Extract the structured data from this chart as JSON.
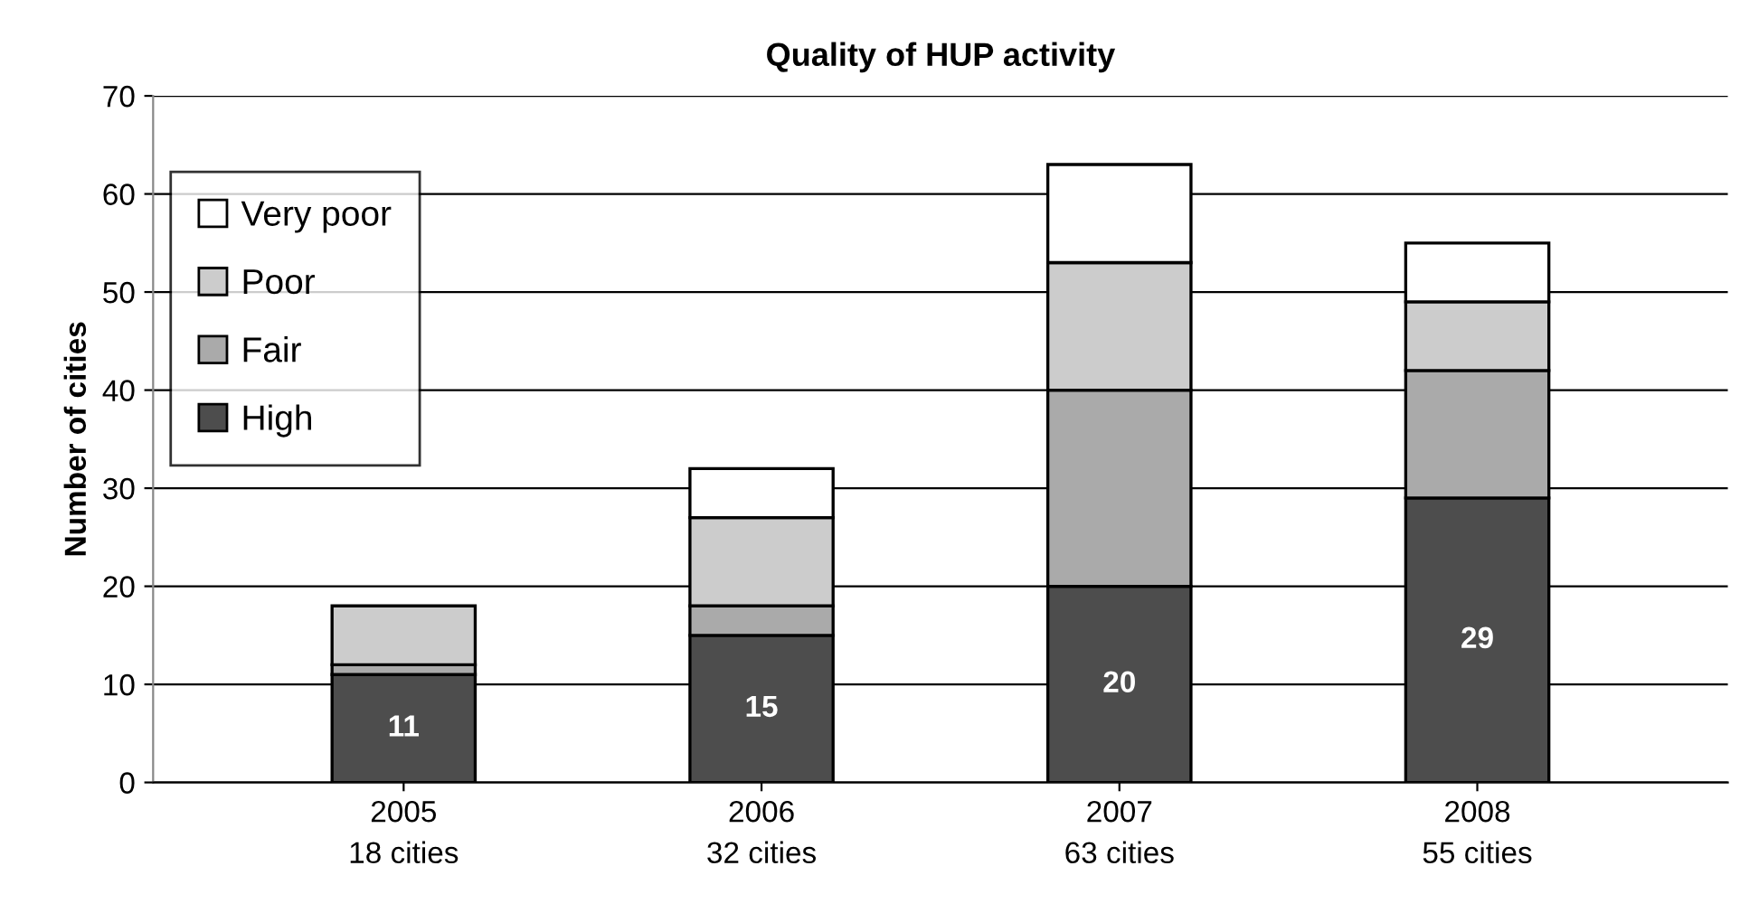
{
  "chart_data": {
    "type": "bar",
    "title": "Quality of HUP activity",
    "ylabel": "Number of cities",
    "categories": [
      "2005\n18 cities",
      "2006\n32 cities",
      "2007\n63 cities",
      "2008\n55 cities"
    ],
    "stacked": true,
    "series": [
      {
        "name": "High",
        "color": "#4d4d4d",
        "values": [
          11,
          15,
          20,
          29
        ],
        "value_labels": [
          "11",
          "15",
          "20",
          "29"
        ]
      },
      {
        "name": "Fair",
        "color": "#aaaaaa",
        "values": [
          1,
          3,
          20,
          13
        ]
      },
      {
        "name": "Poor",
        "color": "#cccccc",
        "values": [
          6,
          9,
          13,
          7
        ]
      },
      {
        "name": "Very poor",
        "color": "#ffffff",
        "values": [
          0,
          5,
          10,
          6
        ]
      }
    ],
    "ylim": [
      0,
      70
    ],
    "yticks": [
      0,
      10,
      20,
      30,
      40,
      50,
      60,
      70
    ],
    "grid": "y",
    "legend": "top left"
  }
}
